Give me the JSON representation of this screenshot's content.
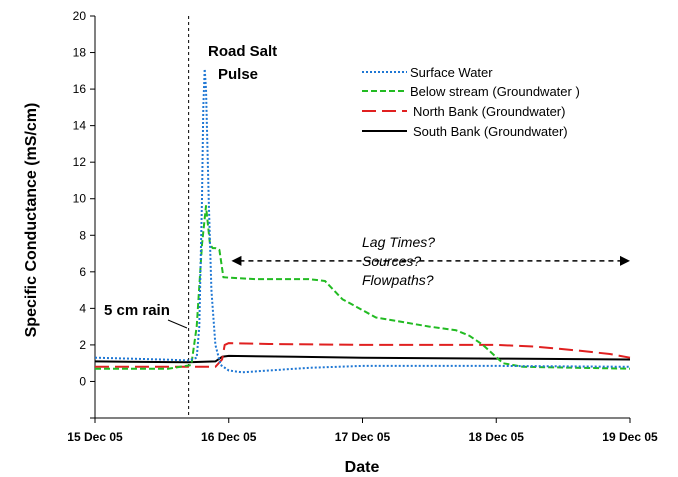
{
  "chart_data": {
    "type": "line",
    "xlabel": "Date",
    "ylabel": "Specific Conductance (mS/cm)",
    "xlim": [
      0,
      4
    ],
    "ylim": [
      -2,
      20
    ],
    "x_ticks": [
      {
        "value": 0,
        "label": "15 Dec 05"
      },
      {
        "value": 1,
        "label": "16 Dec 05"
      },
      {
        "value": 2,
        "label": "17 Dec 05"
      },
      {
        "value": 3,
        "label": "18 Dec 05"
      },
      {
        "value": 4,
        "label": "19 Dec 05"
      }
    ],
    "y_ticks": [
      -2,
      0,
      2,
      4,
      6,
      8,
      10,
      12,
      14,
      16,
      18,
      20
    ],
    "y_tick_labels": [
      "",
      "0",
      "2",
      "4",
      "6",
      "8",
      "10",
      "12",
      "14",
      "16",
      "18",
      "20"
    ],
    "legend_position": "top-right",
    "series": [
      {
        "name": "Surface Water",
        "color": "#1f77d4",
        "style": "dotted",
        "points": [
          [
            0,
            1.3
          ],
          [
            0.5,
            1.2
          ],
          [
            0.7,
            1.15
          ],
          [
            0.76,
            1.3
          ],
          [
            0.78,
            3
          ],
          [
            0.8,
            10
          ],
          [
            0.81,
            15
          ],
          [
            0.82,
            17.1
          ],
          [
            0.83,
            16
          ],
          [
            0.85,
            10
          ],
          [
            0.87,
            5
          ],
          [
            0.9,
            2
          ],
          [
            0.94,
            0.9
          ],
          [
            1.0,
            0.6
          ],
          [
            1.1,
            0.5
          ],
          [
            1.3,
            0.6
          ],
          [
            1.6,
            0.75
          ],
          [
            2.0,
            0.85
          ],
          [
            3.0,
            0.85
          ],
          [
            4.0,
            0.8
          ]
        ]
      },
      {
        "name": "Below stream  (Groundwater )",
        "color": "#22bb22",
        "style": "dashed",
        "points": [
          [
            0,
            0.7
          ],
          [
            0.55,
            0.7
          ],
          [
            0.72,
            0.9
          ],
          [
            0.76,
            3
          ],
          [
            0.8,
            7.5
          ],
          [
            0.83,
            9.6
          ],
          [
            0.86,
            7.5
          ],
          [
            0.88,
            7.3
          ],
          [
            0.9,
            7.3
          ],
          [
            0.93,
            7.2
          ],
          [
            0.96,
            5.7
          ],
          [
            1.2,
            5.6
          ],
          [
            1.6,
            5.6
          ],
          [
            1.72,
            5.5
          ],
          [
            1.85,
            4.5
          ],
          [
            2.1,
            3.5
          ],
          [
            2.5,
            3.0
          ],
          [
            2.7,
            2.8
          ],
          [
            2.8,
            2.5
          ],
          [
            2.9,
            2.0
          ],
          [
            3.05,
            1.0
          ],
          [
            3.2,
            0.8
          ],
          [
            4.0,
            0.7
          ]
        ]
      },
      {
        "name": "North Bank  (Groundwater)",
        "color": "#e02020",
        "style": "dashed",
        "points": [
          [
            0,
            0.8
          ],
          [
            0.9,
            0.8
          ],
          [
            0.95,
            1.2
          ],
          [
            0.97,
            2.0
          ],
          [
            1.0,
            2.1
          ],
          [
            1.3,
            2.05
          ],
          [
            2.0,
            2.0
          ],
          [
            2.5,
            2.0
          ],
          [
            3.0,
            2.0
          ],
          [
            3.3,
            1.9
          ],
          [
            3.6,
            1.7
          ],
          [
            3.85,
            1.5
          ],
          [
            4.0,
            1.3
          ]
        ]
      },
      {
        "name": "South Bank (Groundwater)",
        "color": "#000000",
        "style": "solid",
        "points": [
          [
            0,
            1.1
          ],
          [
            0.7,
            1.05
          ],
          [
            0.9,
            1.1
          ],
          [
            0.95,
            1.35
          ],
          [
            1.0,
            1.4
          ],
          [
            1.5,
            1.35
          ],
          [
            2.0,
            1.3
          ],
          [
            3.0,
            1.25
          ],
          [
            4.0,
            1.2
          ]
        ]
      }
    ],
    "annotations": {
      "rain_x": 0.7,
      "rain_label": "5 cm rain",
      "pulse_title_line1": "Road Salt",
      "pulse_title_line2": "Pulse",
      "question_line1": "Lag Times?",
      "question_line2": "Sources?",
      "question_line3": "Flowpaths?",
      "arrow_x_start": 1.02,
      "arrow_x_end": 4.0,
      "arrow_y": 6.6
    }
  }
}
